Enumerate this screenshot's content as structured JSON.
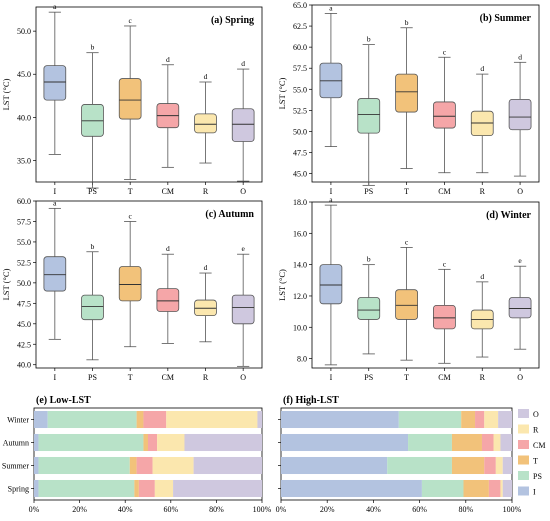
{
  "colors": {
    "I": "#b3c3e0",
    "PS": "#b8e2c8",
    "T": "#f2c27a",
    "CM": "#f5a6a8",
    "R": "#fbe7ae",
    "O": "#cfc8df"
  },
  "chart_data": [
    {
      "type": "box",
      "title": "(a) Spring",
      "ylabel": "LST (°C)",
      "ylim": [
        32.5,
        52.8
      ],
      "yticks": [
        35.0,
        40.0,
        45.0,
        50.0
      ],
      "categories": [
        "I",
        "PS",
        "T",
        "CM",
        "R",
        "O"
      ],
      "boxes": [
        {
          "min": 35.7,
          "q1": 42.0,
          "median": 44.1,
          "q3": 46.0,
          "max": 52.2,
          "letter": "a"
        },
        {
          "min": 31.8,
          "q1": 37.8,
          "median": 39.6,
          "q3": 41.5,
          "max": 47.5,
          "letter": "b"
        },
        {
          "min": 32.8,
          "q1": 39.8,
          "median": 42.0,
          "q3": 44.5,
          "max": 50.6,
          "letter": "c"
        },
        {
          "min": 34.2,
          "q1": 38.8,
          "median": 40.2,
          "q3": 41.6,
          "max": 46.1,
          "letter": "d"
        },
        {
          "min": 34.7,
          "q1": 38.2,
          "median": 39.2,
          "q3": 40.4,
          "max": 44.1,
          "letter": "d"
        },
        {
          "min": 32.6,
          "q1": 37.2,
          "median": 39.2,
          "q3": 41.0,
          "max": 45.6,
          "letter": "d"
        }
      ]
    },
    {
      "type": "box",
      "title": "(b) Summer",
      "ylabel": "LST (°C)",
      "ylim": [
        44.0,
        65.0
      ],
      "yticks": [
        45.0,
        47.5,
        50.0,
        52.5,
        55.0,
        57.5,
        60.0,
        62.5,
        65.0
      ],
      "categories": [
        "I",
        "PS",
        "T",
        "CM",
        "R",
        "O"
      ],
      "boxes": [
        {
          "min": 48.2,
          "q1": 54.0,
          "median": 56.0,
          "q3": 58.1,
          "max": 64.0,
          "letter": "a"
        },
        {
          "min": 43.6,
          "q1": 49.8,
          "median": 52.0,
          "q3": 53.9,
          "max": 60.3,
          "letter": "b"
        },
        {
          "min": 45.6,
          "q1": 52.3,
          "median": 54.7,
          "q3": 56.8,
          "max": 62.3,
          "letter": "b"
        },
        {
          "min": 45.1,
          "q1": 50.4,
          "median": 51.8,
          "q3": 53.5,
          "max": 58.8,
          "letter": "c"
        },
        {
          "min": 45.1,
          "q1": 49.5,
          "median": 51.0,
          "q3": 52.4,
          "max": 56.8,
          "letter": "d"
        },
        {
          "min": 44.7,
          "q1": 50.2,
          "median": 51.7,
          "q3": 53.8,
          "max": 58.2,
          "letter": "d"
        }
      ]
    },
    {
      "type": "box",
      "title": "(c) Autumn",
      "ylabel": "LST (°C)",
      "ylim": [
        39.6,
        60.0
      ],
      "yticks": [
        40.0,
        42.5,
        45.0,
        47.5,
        50.0,
        52.5,
        55.0,
        57.5,
        60.0
      ],
      "categories": [
        "I",
        "PS",
        "T",
        "CM",
        "R",
        "O"
      ],
      "boxes": [
        {
          "min": 43.1,
          "q1": 49.0,
          "median": 51.0,
          "q3": 53.2,
          "max": 59.1,
          "letter": "a"
        },
        {
          "min": 40.6,
          "q1": 45.5,
          "median": 47.1,
          "q3": 48.5,
          "max": 53.8,
          "letter": "b"
        },
        {
          "min": 42.2,
          "q1": 47.8,
          "median": 49.8,
          "q3": 52.0,
          "max": 57.5,
          "letter": "c"
        },
        {
          "min": 42.6,
          "q1": 46.5,
          "median": 47.8,
          "q3": 49.3,
          "max": 53.5,
          "letter": "d"
        },
        {
          "min": 42.8,
          "q1": 46.0,
          "median": 46.9,
          "q3": 47.9,
          "max": 51.2,
          "letter": "d"
        },
        {
          "min": 39.8,
          "q1": 45.0,
          "median": 47.0,
          "q3": 48.5,
          "max": 53.5,
          "letter": "e"
        }
      ]
    },
    {
      "type": "box",
      "title": "(d) Winter",
      "ylabel": "LST (°C)",
      "ylim": [
        7.4,
        18.0
      ],
      "yticks": [
        8.0,
        10.0,
        12.0,
        14.0,
        16.0,
        18.0
      ],
      "categories": [
        "I",
        "PS",
        "T",
        "CM",
        "R",
        "O"
      ],
      "boxes": [
        {
          "min": 7.6,
          "q1": 11.5,
          "median": 12.7,
          "q3": 14.0,
          "max": 17.8,
          "letter": "a"
        },
        {
          "min": 8.3,
          "q1": 10.5,
          "median": 11.1,
          "q3": 11.9,
          "max": 14.0,
          "letter": "b"
        },
        {
          "min": 7.9,
          "q1": 10.5,
          "median": 11.4,
          "q3": 12.4,
          "max": 15.1,
          "letter": "c"
        },
        {
          "min": 7.7,
          "q1": 9.9,
          "median": 10.6,
          "q3": 11.4,
          "max": 13.7,
          "letter": "c"
        },
        {
          "min": 8.1,
          "q1": 9.9,
          "median": 10.5,
          "q3": 11.1,
          "max": 12.9,
          "letter": "d"
        },
        {
          "min": 8.6,
          "q1": 10.6,
          "median": 11.2,
          "q3": 11.9,
          "max": 13.9,
          "letter": "e"
        }
      ]
    },
    {
      "type": "stacked-bar-horizontal",
      "title": "(e) Low-LST",
      "categories": [
        "Winter",
        "Autumn",
        "Summer",
        "Spring"
      ],
      "xticks": [
        "0%",
        "20%",
        "40%",
        "60%",
        "80%",
        "100%"
      ],
      "series": [
        {
          "name": "I",
          "values": [
            6,
            2,
            2,
            2
          ]
        },
        {
          "name": "PS",
          "values": [
            39,
            46,
            40,
            42
          ]
        },
        {
          "name": "T",
          "values": [
            3,
            2,
            3,
            2
          ]
        },
        {
          "name": "CM",
          "values": [
            10,
            4,
            7,
            7
          ]
        },
        {
          "name": "R",
          "values": [
            40,
            12,
            18,
            8
          ]
        },
        {
          "name": "O",
          "values": [
            2,
            34,
            30,
            39
          ]
        }
      ]
    },
    {
      "type": "stacked-bar-horizontal",
      "title": "(f) High-LST",
      "categories": [
        "Winter",
        "Autumn",
        "Summer",
        "Spring"
      ],
      "xticks": [
        "0%",
        "20%",
        "40%",
        "60%",
        "80%",
        "100%"
      ],
      "series": [
        {
          "name": "I",
          "values": [
            51,
            55,
            46,
            61
          ]
        },
        {
          "name": "PS",
          "values": [
            27,
            19,
            28,
            18
          ]
        },
        {
          "name": "T",
          "values": [
            6,
            13,
            14,
            11
          ]
        },
        {
          "name": "CM",
          "values": [
            4,
            5,
            5,
            5
          ]
        },
        {
          "name": "R",
          "values": [
            6,
            3,
            3,
            1
          ]
        },
        {
          "name": "O",
          "values": [
            6,
            5,
            4,
            4
          ]
        }
      ],
      "legend": [
        "O",
        "R",
        "CM",
        "T",
        "PS",
        "I"
      ],
      "legend_position": "right"
    }
  ]
}
